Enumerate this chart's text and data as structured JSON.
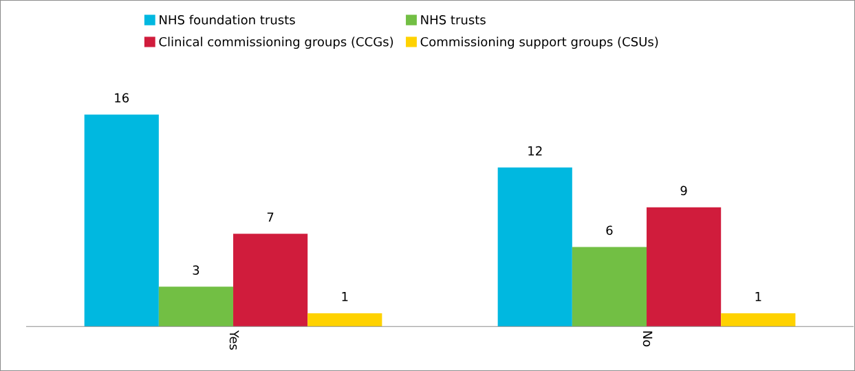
{
  "chart_data": {
    "type": "bar",
    "categories": [
      "Yes",
      "No"
    ],
    "series": [
      {
        "name": "NHS foundation trusts",
        "color": "#00b8e0",
        "values": [
          16,
          12
        ]
      },
      {
        "name": "NHS trusts",
        "color": "#72bf44",
        "values": [
          3,
          6
        ]
      },
      {
        "name": "Clinical commissioning groups (CCGs)",
        "color": "#d01c3c",
        "values": [
          7,
          9
        ]
      },
      {
        "name": "Commissioning support groups (CSUs)",
        "color": "#ffd200",
        "values": [
          1,
          1
        ]
      }
    ],
    "data_labels": true,
    "legend": "top",
    "grid": false,
    "tick_labels": "x"
  }
}
